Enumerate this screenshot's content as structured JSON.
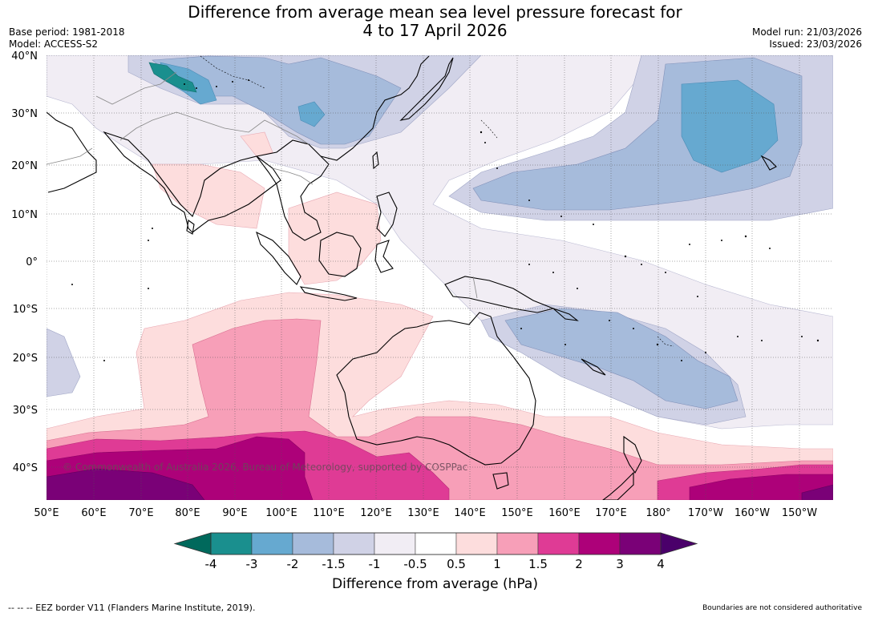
{
  "title": {
    "line1": "Difference from average mean sea level pressure forecast for",
    "line2": "4 to 17 April 2026"
  },
  "meta_left": {
    "base_period": "Base period: 1981-2018",
    "model": "Model: ACCESS-S2"
  },
  "meta_right": {
    "model_run": "Model run: 21/03/2026",
    "issued": "Issued: 23/03/2026"
  },
  "map": {
    "lat_labels": [
      "40°N",
      "30°N",
      "20°N",
      "10°N",
      "0°",
      "10°S",
      "20°S",
      "30°S",
      "40°S"
    ],
    "lon_labels": [
      "50°E",
      "60°E",
      "70°E",
      "80°E",
      "90°E",
      "100°E",
      "110°E",
      "120°E",
      "130°E",
      "140°E",
      "150°E",
      "160°E",
      "170°E",
      "180°",
      "170°W",
      "160°W",
      "150°W"
    ],
    "watermark": "© Commonwealth of Australia 2026, Bureau of Meteorology, supported by COSPPac"
  },
  "colorbar": {
    "ticks": [
      "-4",
      "-3",
      "-2",
      "-1.5",
      "-1",
      "-0.5",
      "0.5",
      "1",
      "1.5",
      "2",
      "3",
      "4"
    ],
    "colors": [
      "#1a8f8e",
      "#66a9d0",
      "#a6bbdb",
      "#d0d2e6",
      "#f1edf4",
      "#ffffff",
      "#fddddd",
      "#f79fb8",
      "#df3b95",
      "#ad0179",
      "#7a0177"
    ],
    "low_extend_color": "#00695c",
    "high_extend_color": "#4a006a",
    "label": "Difference from average (hPa)"
  },
  "footer": {
    "left": "--  --  -- EEZ border V11 (Flanders Marine Institute, 2019).",
    "right": "Boundaries are not considered authoritative"
  }
}
